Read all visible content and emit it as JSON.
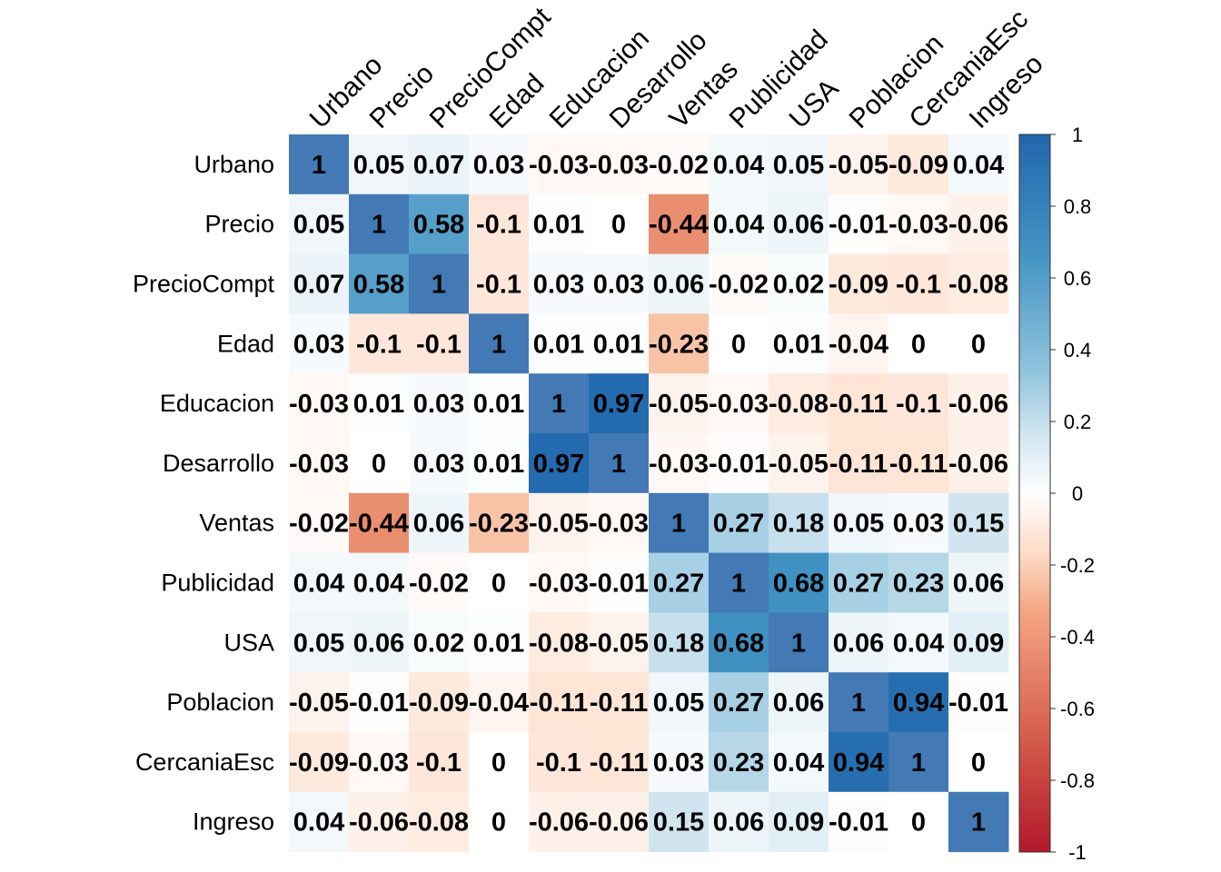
{
  "chart_data": {
    "type": "heatmap",
    "variables": [
      "Urbano",
      "Precio",
      "PrecioCompt",
      "Edad",
      "Educacion",
      "Desarrollo",
      "Ventas",
      "Publicidad",
      "USA",
      "Poblacion",
      "CercaniaEsc",
      "Ingreso"
    ],
    "matrix": [
      [
        1,
        0.05,
        0.07,
        0.03,
        -0.03,
        -0.03,
        -0.02,
        0.04,
        0.05,
        -0.05,
        -0.09,
        0.04
      ],
      [
        0.05,
        1,
        0.58,
        -0.1,
        0.01,
        0,
        -0.44,
        0.04,
        0.06,
        -0.01,
        -0.03,
        -0.06
      ],
      [
        0.07,
        0.58,
        1,
        -0.1,
        0.03,
        0.03,
        0.06,
        -0.02,
        0.02,
        -0.09,
        -0.1,
        -0.08
      ],
      [
        0.03,
        -0.1,
        -0.1,
        1,
        0.01,
        0.01,
        -0.23,
        0,
        0.01,
        -0.04,
        0,
        0
      ],
      [
        -0.03,
        0.01,
        0.03,
        0.01,
        1,
        0.97,
        -0.05,
        -0.03,
        -0.08,
        -0.11,
        -0.1,
        -0.06
      ],
      [
        -0.03,
        0,
        0.03,
        0.01,
        0.97,
        1,
        -0.03,
        -0.01,
        -0.05,
        -0.11,
        -0.11,
        -0.06
      ],
      [
        -0.02,
        -0.44,
        0.06,
        -0.23,
        -0.05,
        -0.03,
        1,
        0.27,
        0.18,
        0.05,
        0.03,
        0.15
      ],
      [
        0.04,
        0.04,
        -0.02,
        0,
        -0.03,
        -0.01,
        0.27,
        1,
        0.68,
        0.27,
        0.23,
        0.06
      ],
      [
        0.05,
        0.06,
        0.02,
        0.01,
        -0.08,
        -0.05,
        0.18,
        0.68,
        1,
        0.06,
        0.04,
        0.09
      ],
      [
        -0.05,
        -0.01,
        -0.09,
        -0.04,
        -0.11,
        -0.11,
        0.05,
        0.27,
        0.06,
        1,
        0.94,
        -0.01
      ],
      [
        -0.09,
        -0.03,
        -0.1,
        0,
        -0.1,
        -0.11,
        0.03,
        0.23,
        0.04,
        0.94,
        1,
        0
      ],
      [
        0.04,
        -0.06,
        -0.08,
        0,
        -0.06,
        -0.06,
        0.15,
        0.06,
        0.09,
        -0.01,
        0,
        1
      ]
    ],
    "value_range": [
      -1,
      1
    ],
    "colorbar_ticks": [
      "1",
      "0.8",
      "0.6",
      "0.4",
      "0.2",
      "0",
      "-0.2",
      "-0.4",
      "-0.6",
      "-0.8",
      "-1"
    ],
    "colors": {
      "negative": "#B2182B",
      "mid_negative": "#EF8A62",
      "light_negative": "#FDDBC7",
      "zero": "#FFFFFF",
      "light_positive": "#D1E5F0",
      "mid_positive": "#67A9CF",
      "positive": "#2166AC",
      "diagonal_shade": "#4379B4"
    },
    "legend_placement": "right",
    "grid": false,
    "title": ""
  }
}
